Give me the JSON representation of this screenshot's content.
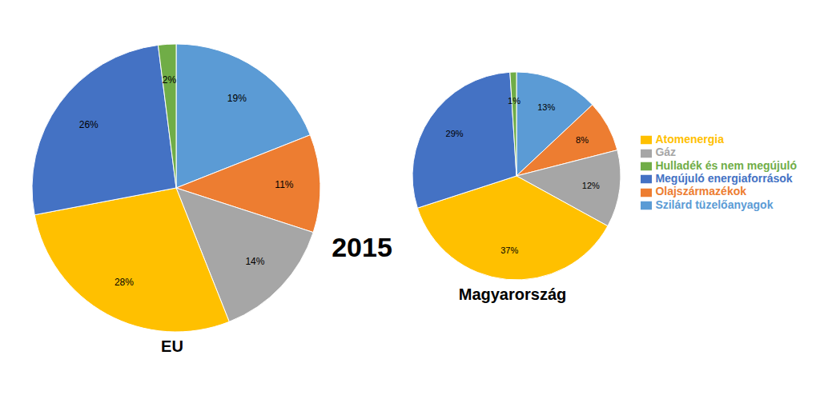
{
  "chart_data": [
    {
      "type": "pie",
      "title": "EU",
      "values": [
        19,
        11,
        14,
        28,
        26,
        2
      ],
      "value_labels": [
        "19%",
        "11%",
        "14%",
        "28%",
        "26%",
        "2%"
      ],
      "colors": [
        "#5b9bd5",
        "#ed7d31",
        "#a6a6a6",
        "#ffc000",
        "#4472c4",
        "#70ad47"
      ],
      "data_labels": true,
      "annotations": [
        "2015"
      ]
    },
    {
      "type": "pie",
      "title": "Magyarország",
      "categories": [
        "Szilárd tüzelőanyagok",
        "Olajszármazékok",
        "Gáz",
        "Atomenergia",
        "Megújuló energiaforrások",
        "Hulladék és nem megújuló"
      ],
      "values": [
        13,
        8,
        12,
        37,
        29,
        1
      ],
      "value_labels": [
        "13%",
        "8%",
        "12%",
        "37%",
        "29%",
        "1%"
      ],
      "colors": [
        "#5b9bd5",
        "#ed7d31",
        "#a6a6a6",
        "#ffc000",
        "#4472c4",
        "#70ad47"
      ],
      "data_labels": true,
      "legend": "right"
    }
  ]
}
